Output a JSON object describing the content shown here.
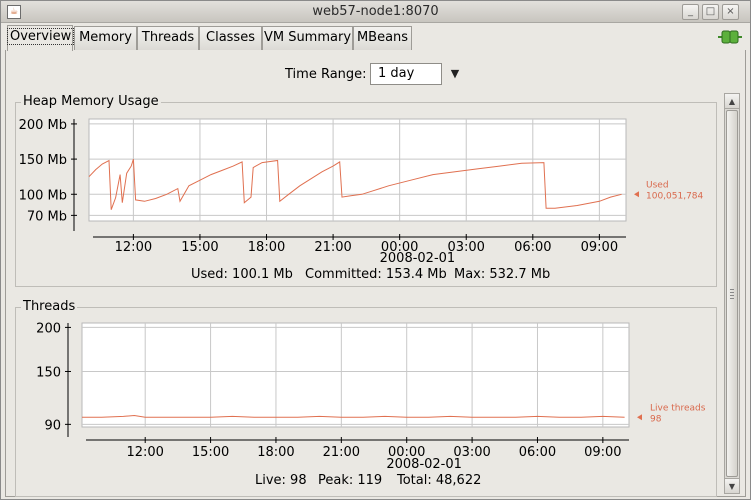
{
  "window": {
    "title": "web57-node1:8070",
    "app_icon": "java-icon",
    "buttons": {
      "minimize": "_",
      "maximize": "□",
      "close": "×"
    }
  },
  "tabs": [
    {
      "label": "Overview",
      "active": true
    },
    {
      "label": "Memory"
    },
    {
      "label": "Threads"
    },
    {
      "label": "Classes"
    },
    {
      "label": "VM Summary"
    },
    {
      "label": "MBeans"
    }
  ],
  "connection_icon": "connected-plug-icon",
  "time_range": {
    "label": "Time Range:",
    "value": "1 day"
  },
  "heap": {
    "title": "Heap Memory Usage",
    "legend_label": "Used",
    "legend_value": "100,051,784",
    "summary": {
      "used": "Used: 100.1 Mb",
      "committed": "Committed: 153.4 Mb",
      "max": "Max: 532.7 Mb"
    }
  },
  "threads": {
    "title": "Threads",
    "legend_label": "Live threads",
    "legend_value": "98",
    "summary": {
      "live": "Live: 98",
      "peak": "Peak: 119",
      "total": "Total: 48,622"
    }
  },
  "colors": {
    "series": "#e07050",
    "grid": "#c8c8c8",
    "plot_bg": "#ffffff"
  },
  "chart_data": [
    {
      "type": "line",
      "title": "Heap Memory Usage",
      "y_tick_labels": [
        "200 Mb",
        "150 Mb",
        "100 Mb",
        "70 Mb"
      ],
      "y_ticks": [
        200,
        150,
        100,
        70
      ],
      "ylim": [
        62,
        207
      ],
      "x_tick_labels": [
        "12:00",
        "15:00",
        "18:00",
        "21:00",
        "00:00",
        "03:00",
        "06:00",
        "09:00"
      ],
      "x_ticks": [
        12,
        15,
        18,
        21,
        24,
        27,
        30,
        33
      ],
      "date_label": "2008-02-01",
      "xlim": [
        10,
        34.2
      ],
      "series": [
        {
          "name": "Used",
          "points": [
            [
              10.0,
              125
            ],
            [
              10.3,
              135
            ],
            [
              10.6,
              143
            ],
            [
              10.9,
              148
            ],
            [
              11.0,
              78
            ],
            [
              11.2,
              95
            ],
            [
              11.4,
              128
            ],
            [
              11.5,
              88
            ],
            [
              11.7,
              130
            ],
            [
              11.9,
              140
            ],
            [
              12.0,
              150
            ],
            [
              12.1,
              92
            ],
            [
              12.5,
              90
            ],
            [
              13.0,
              94
            ],
            [
              13.5,
              100
            ],
            [
              14.0,
              108
            ],
            [
              14.1,
              90
            ],
            [
              14.5,
              112
            ],
            [
              15.0,
              120
            ],
            [
              15.5,
              128
            ],
            [
              16.0,
              134
            ],
            [
              16.5,
              140
            ],
            [
              16.9,
              146
            ],
            [
              17.0,
              88
            ],
            [
              17.3,
              96
            ],
            [
              17.4,
              138
            ],
            [
              17.8,
              145
            ],
            [
              18.5,
              148
            ],
            [
              18.6,
              90
            ],
            [
              19.0,
              100
            ],
            [
              19.5,
              112
            ],
            [
              20.0,
              122
            ],
            [
              20.5,
              132
            ],
            [
              21.0,
              140
            ],
            [
              21.3,
              146
            ],
            [
              21.4,
              96
            ],
            [
              21.8,
              98
            ],
            [
              22.3,
              100
            ],
            [
              22.8,
              105
            ],
            [
              23.5,
              112
            ],
            [
              24.5,
              120
            ],
            [
              25.5,
              128
            ],
            [
              26.5,
              132
            ],
            [
              27.5,
              136
            ],
            [
              28.5,
              140
            ],
            [
              29.5,
              144
            ],
            [
              30.5,
              145
            ],
            [
              30.6,
              80
            ],
            [
              31.0,
              80
            ],
            [
              32.0,
              84
            ],
            [
              33.0,
              90
            ],
            [
              33.5,
              96
            ],
            [
              34.0,
              100
            ]
          ]
        }
      ]
    },
    {
      "type": "line",
      "title": "Threads",
      "y_tick_labels": [
        "200",
        "150",
        "90"
      ],
      "y_ticks": [
        200,
        150,
        90
      ],
      "ylim": [
        87,
        205
      ],
      "x_tick_labels": [
        "12:00",
        "15:00",
        "18:00",
        "21:00",
        "00:00",
        "03:00",
        "06:00",
        "09:00"
      ],
      "x_ticks": [
        12,
        15,
        18,
        21,
        24,
        27,
        30,
        33
      ],
      "date_label": "2008-02-01",
      "xlim": [
        9.1,
        34.2
      ],
      "series": [
        {
          "name": "Live threads",
          "points": [
            [
              9.1,
              98
            ],
            [
              10.0,
              98
            ],
            [
              11.0,
              99
            ],
            [
              11.5,
              100
            ],
            [
              12.0,
              98
            ],
            [
              13.0,
              98
            ],
            [
              14.0,
              98
            ],
            [
              15.0,
              98
            ],
            [
              16.0,
              99
            ],
            [
              17.0,
              98
            ],
            [
              18.0,
              98
            ],
            [
              19.0,
              98
            ],
            [
              20.0,
              99
            ],
            [
              21.0,
              98
            ],
            [
              22.0,
              98
            ],
            [
              23.0,
              99
            ],
            [
              24.0,
              98
            ],
            [
              25.0,
              98
            ],
            [
              26.0,
              99
            ],
            [
              27.0,
              98
            ],
            [
              28.0,
              98
            ],
            [
              29.0,
              98
            ],
            [
              30.0,
              99
            ],
            [
              31.0,
              98
            ],
            [
              32.0,
              98
            ],
            [
              33.0,
              99
            ],
            [
              34.0,
              98
            ]
          ]
        }
      ]
    }
  ]
}
